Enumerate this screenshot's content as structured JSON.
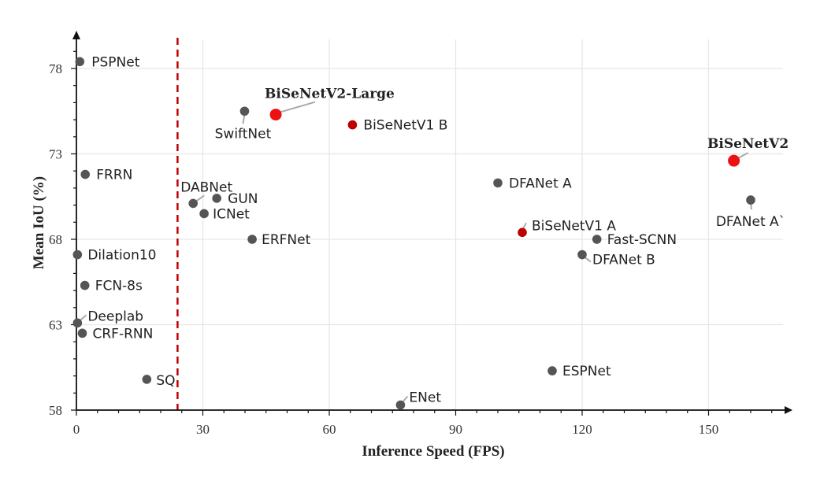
{
  "chart_data": {
    "type": "scatter",
    "title": "",
    "xlabel": "Inference Speed (FPS)",
    "ylabel": "Mean IoU (%)",
    "xlim": [
      0,
      170
    ],
    "ylim": [
      58,
      80
    ],
    "xticks": [
      0,
      30,
      60,
      90,
      120,
      150
    ],
    "yticks": [
      58,
      63,
      68,
      73,
      78
    ],
    "grid": true,
    "reference_line": {
      "x": 24,
      "color": "#c00000",
      "style": "dashed"
    },
    "colors": {
      "default": "#555555",
      "highlight": "#ee1111",
      "bisenetv1": "#c00000",
      "grid": "#e6e6e6",
      "axis": "#111111"
    },
    "points": [
      {
        "label": "PSPNet",
        "x": 0.8,
        "y": 78.4,
        "color": "#555555"
      },
      {
        "label": "BiSeNetV2-Large",
        "x": 47.3,
        "y": 75.3,
        "color": "#ee1111",
        "highlight": true
      },
      {
        "label": "SwiftNet",
        "x": 39.9,
        "y": 75.5,
        "color": "#555555"
      },
      {
        "label": "BiSeNetV1 B",
        "x": 65.5,
        "y": 74.7,
        "color": "#c00000"
      },
      {
        "label": "BiSeNetV2",
        "x": 156,
        "y": 72.6,
        "color": "#ee1111",
        "highlight": true
      },
      {
        "label": "FRRN",
        "x": 2.1,
        "y": 71.8,
        "color": "#555555"
      },
      {
        "label": "DABNet",
        "x": 27.7,
        "y": 70.1,
        "color": "#555555"
      },
      {
        "label": "GUN",
        "x": 33.3,
        "y": 70.4,
        "color": "#555555"
      },
      {
        "label": "ICNet",
        "x": 30.3,
        "y": 69.5,
        "color": "#555555"
      },
      {
        "label": "DFANet A",
        "x": 100,
        "y": 71.3,
        "color": "#555555"
      },
      {
        "label": "DFANet A`",
        "x": 160,
        "y": 70.3,
        "color": "#555555"
      },
      {
        "label": "BiSeNetV1 A",
        "x": 105.8,
        "y": 68.4,
        "color": "#c00000"
      },
      {
        "label": "ERFNet",
        "x": 41.7,
        "y": 68.0,
        "color": "#555555"
      },
      {
        "label": "Fast-SCNN",
        "x": 123.5,
        "y": 68.0,
        "color": "#555555"
      },
      {
        "label": "DFANet B",
        "x": 120,
        "y": 67.1,
        "color": "#555555"
      },
      {
        "label": "Dilation10",
        "x": 0.25,
        "y": 67.1,
        "color": "#555555"
      },
      {
        "label": "FCN-8s",
        "x": 2,
        "y": 65.3,
        "color": "#555555"
      },
      {
        "label": "Deeplab",
        "x": 0.25,
        "y": 63.1,
        "color": "#555555"
      },
      {
        "label": "CRF-RNN",
        "x": 1.4,
        "y": 62.5,
        "color": "#555555"
      },
      {
        "label": "SQ",
        "x": 16.7,
        "y": 59.8,
        "color": "#555555"
      },
      {
        "label": "ESPNet",
        "x": 112.9,
        "y": 60.3,
        "color": "#555555"
      },
      {
        "label": "ENet",
        "x": 76.9,
        "y": 58.3,
        "color": "#555555"
      }
    ]
  }
}
